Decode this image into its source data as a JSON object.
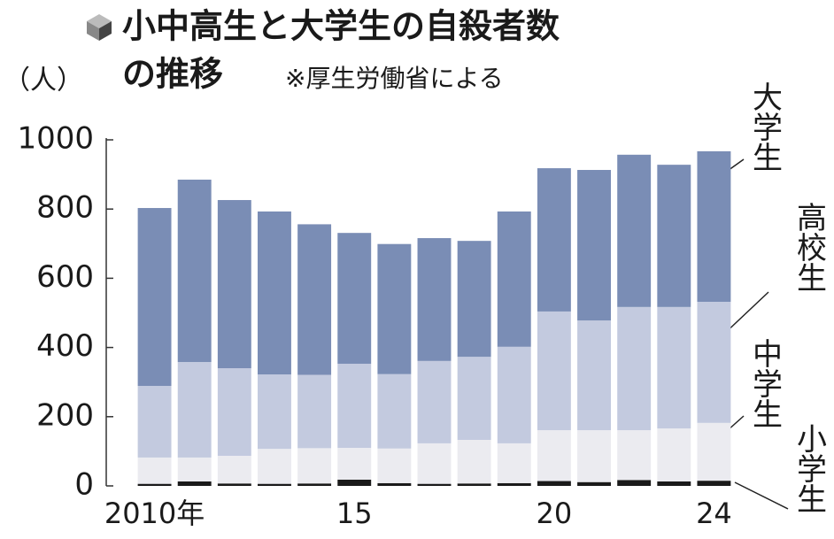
{
  "chart_data": {
    "type": "stacked-bar",
    "title": "小中高生と大学生の自殺者数",
    "title_line2": "の推移",
    "note": "※厚生労働省による",
    "y_label": "（人）",
    "categories": [
      "2010年",
      null,
      null,
      null,
      null,
      "15",
      null,
      null,
      null,
      null,
      "20",
      null,
      null,
      null,
      "24"
    ],
    "series": [
      {
        "name": "小学生",
        "color": "#1a1a1a",
        "values": [
          6,
          13,
          7,
          6,
          7,
          18,
          8,
          6,
          7,
          8,
          14,
          11,
          17,
          13,
          15
        ]
      },
      {
        "name": "中学生",
        "color": "#ebebf0",
        "values": [
          76,
          69,
          80,
          101,
          102,
          92,
          100,
          117,
          126,
          115,
          147,
          150,
          144,
          153,
          167
        ]
      },
      {
        "name": "高校生",
        "color": "#c3cadf",
        "values": [
          207,
          276,
          253,
          215,
          212,
          243,
          215,
          238,
          240,
          279,
          343,
          317,
          356,
          351,
          350
        ]
      },
      {
        "name": "大学生",
        "color": "#7a8db5",
        "values": [
          514,
          527,
          486,
          471,
          435,
          378,
          376,
          355,
          335,
          391,
          414,
          435,
          440,
          411,
          435
        ]
      }
    ],
    "ylim": [
      0,
      1000
    ],
    "yticks": [
      0,
      200,
      400,
      600,
      800,
      1000
    ],
    "grid": false
  }
}
